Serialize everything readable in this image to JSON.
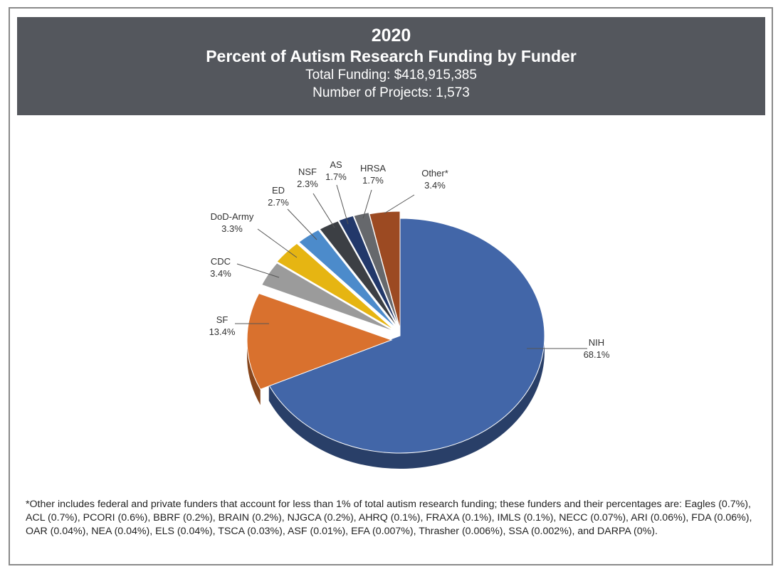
{
  "header": {
    "year": "2020",
    "title": "Percent of Autism Research Funding by Funder",
    "total_funding": "Total Funding: $418,915,385",
    "num_projects": "Number of Projects: 1,573"
  },
  "chart_data": {
    "type": "pie",
    "title": "Percent of Autism Research Funding by Funder",
    "style": "3d-exploded",
    "slices": [
      {
        "label": "NIH",
        "value": 68.1,
        "text": "68.1%",
        "color": "#4266a8"
      },
      {
        "label": "SF",
        "value": 13.4,
        "text": "13.4%",
        "color": "#d9712e"
      },
      {
        "label": "CDC",
        "value": 3.4,
        "text": "3.4%",
        "color": "#9b9b9b"
      },
      {
        "label": "DoD-Army",
        "value": 3.3,
        "text": "3.3%",
        "color": "#e6b512"
      },
      {
        "label": "ED",
        "value": 2.7,
        "text": "2.7%",
        "color": "#4c8bcb"
      },
      {
        "label": "NSF",
        "value": 2.3,
        "text": "2.3%",
        "color": "#3c3f44"
      },
      {
        "label": "AS",
        "value": 1.7,
        "text": "1.7%",
        "color": "#22386a"
      },
      {
        "label": "HRSA",
        "value": 1.7,
        "text": "1.7%",
        "color": "#66686c"
      },
      {
        "label": "Other*",
        "value": 3.4,
        "text": "3.4%",
        "color": "#9c4a22"
      }
    ]
  },
  "footnote": "*Other includes federal and private funders that account for less than 1% of total autism research funding; these funders and their percentages are: Eagles (0.7%), ACL (0.7%), PCORI (0.6%), BBRF (0.2%), BRAIN (0.2%), NJGCA (0.2%), AHRQ (0.1%), FRAXA (0.1%), IMLS (0.1%), NECC (0.07%), ARI (0.06%), FDA (0.06%), OAR (0.04%), NEA (0.04%), ELS (0.04%), TSCA (0.03%), ASF (0.01%), EFA (0.007%), Thrasher (0.006%), SSA (0.002%), and DARPA (0%)."
}
